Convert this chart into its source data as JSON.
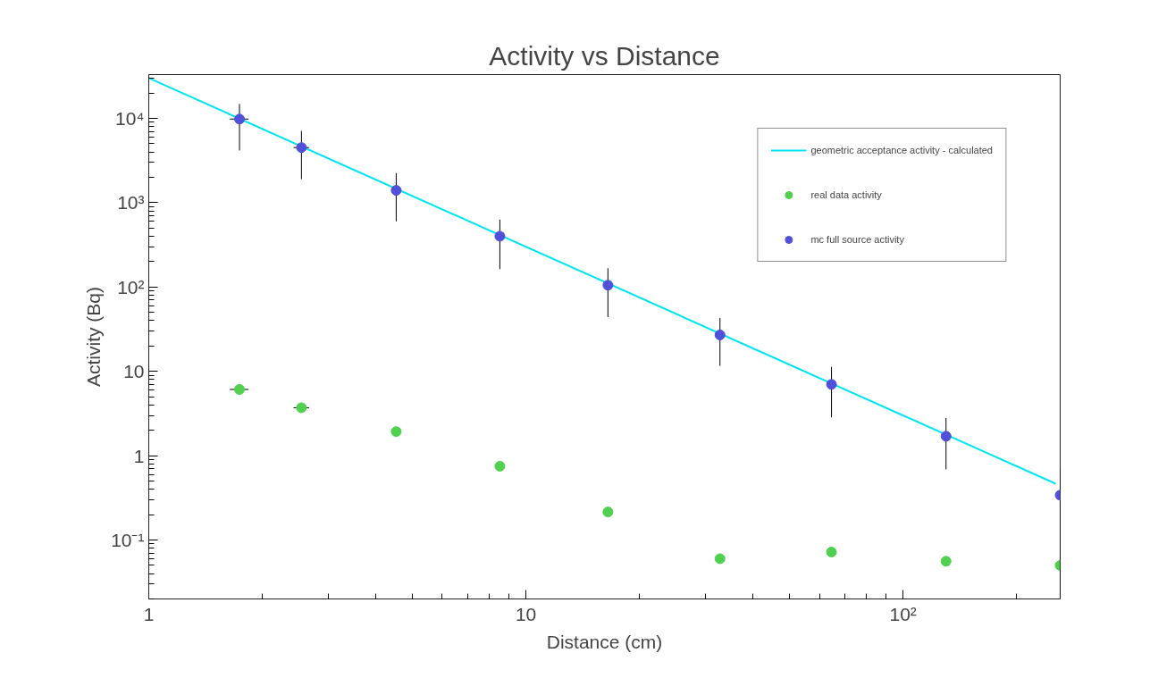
{
  "chart_data": {
    "type": "scatter",
    "title": "Activity vs Distance",
    "xlabel": "Distance (cm)",
    "ylabel": "Activity (Bq)",
    "log": "xy",
    "grid": false,
    "legend": "top right",
    "marker": "circle",
    "xlim": [
      1,
      261
    ],
    "ylim": [
      0.02,
      33000
    ],
    "xticks": [
      1,
      10,
      {
        "value": 100,
        "label": "10²"
      }
    ],
    "yticks": [
      {
        "value": 0.1,
        "label": "10⁻¹"
      },
      1,
      10,
      {
        "value": 100,
        "label": "10²"
      },
      {
        "value": 1000,
        "label": "10³"
      },
      {
        "value": 10000,
        "label": "10⁴"
      }
    ],
    "series": [
      {
        "name": "geometric acceptance activity - calculated",
        "type": "line",
        "marker": "none",
        "color": "#00e5f0",
        "x": [
          1,
          254
        ],
        "values": [
          30000,
          0.465
        ]
      },
      {
        "name": "real data activity",
        "color": "#4fd04f",
        "x": [
          1.74,
          2.54,
          4.53,
          8.53,
          16.5,
          32.7,
          64.6,
          130,
          261
        ],
        "values": [
          6.1,
          3.7,
          1.93,
          0.75,
          0.215,
          0.06,
          0.072,
          0.056,
          0.05
        ],
        "xerrors": [
          0.1,
          0.12,
          null,
          null,
          null,
          null,
          null,
          null,
          null
        ]
      },
      {
        "name": "mc full source activity",
        "color": "#5050d8",
        "x": [
          1.74,
          2.54,
          4.53,
          8.53,
          16.5,
          32.7,
          64.6,
          130,
          261
        ],
        "values": [
          9800,
          4500,
          1400,
          400,
          105,
          27,
          7.0,
          1.7,
          0.34
        ],
        "xerrors": [
          0.1,
          0.12,
          null,
          null,
          null,
          null,
          null,
          null,
          null
        ],
        "errors": [
          [
            4150,
            14800
          ],
          [
            1900,
            7100
          ],
          [
            600,
            2240
          ],
          [
            163,
            630
          ],
          [
            44,
            167
          ],
          [
            11.6,
            43
          ],
          [
            2.85,
            11.3
          ],
          [
            0.69,
            2.8
          ],
          [
            0.02,
            0.71
          ]
        ]
      }
    ]
  }
}
